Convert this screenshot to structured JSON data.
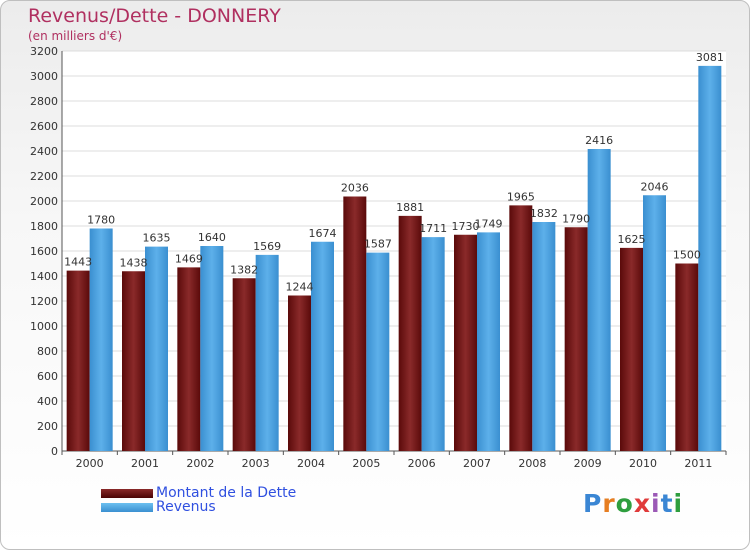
{
  "chart_data": {
    "type": "bar",
    "title": "Revenus/Dette - DONNERY",
    "subtitle": "(en milliers d'€)",
    "categories": [
      "2000",
      "2001",
      "2002",
      "2003",
      "2004",
      "2005",
      "2006",
      "2007",
      "2008",
      "2009",
      "2010",
      "2011"
    ],
    "series": [
      {
        "name": "Montant de la Dette",
        "values": [
          1443,
          1438,
          1469,
          1382,
          1244,
          2036,
          1881,
          1730,
          1965,
          1790,
          1625,
          1500
        ],
        "color": "#7a1a1a"
      },
      {
        "name": "Revenus",
        "values": [
          1780,
          1635,
          1640,
          1569,
          1674,
          1587,
          1711,
          1749,
          1832,
          2416,
          2046,
          3081
        ],
        "color": "#4aa3e0"
      }
    ],
    "ylim": [
      0,
      3200
    ],
    "ytick_step": 200,
    "grid": true,
    "legend_position": "bottom-left"
  },
  "watermark": {
    "text": "Proxiti",
    "letter_colors": [
      "#3a86d4",
      "#e67e22",
      "#2e9e3e",
      "#e03a3a",
      "#9b59b6",
      "#3a86d4",
      "#2e9e3e"
    ]
  }
}
